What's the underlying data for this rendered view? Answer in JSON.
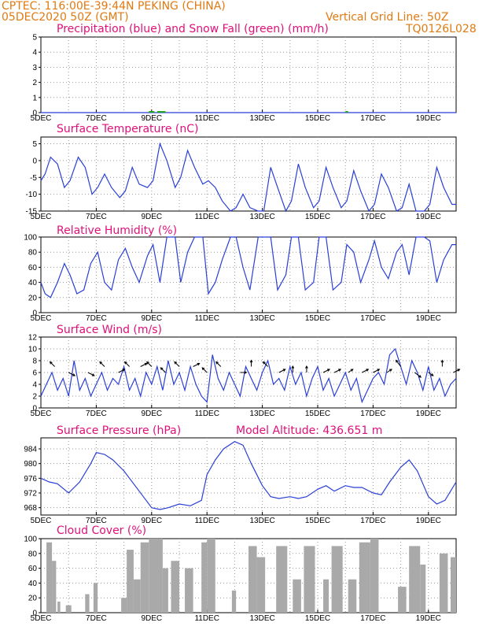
{
  "header": {
    "line1": "CPTEC:   116:00E-39:44N   PEKING (CHINA)",
    "line2": "05DEC2020 50Z (GMT)",
    "grid_note": "Vertical Grid Line: 50Z",
    "code": "TQ0126L028"
  },
  "colors": {
    "series_line": "#2a3fd6",
    "wind_arrow": "#000000",
    "cloud_fill": "#a9a9a9",
    "title_color": "#e0107a",
    "header_color": "#e07a12"
  },
  "chart_data": [
    {
      "id": "precip",
      "type": "line",
      "title": "Precipitation (blue) and Snow Fall (green) (mm/h)",
      "x_tick_labels": [
        "5DEC",
        "7DEC",
        "9DEC",
        "11DEC",
        "13DEC",
        "15DEC",
        "17DEC",
        "19DEC"
      ],
      "ylim": [
        0,
        5
      ],
      "y_ticks": [
        0,
        1,
        2,
        3,
        4,
        5
      ],
      "grid": true,
      "series": [
        {
          "name": "Precipitation",
          "color": "#2a3fd6",
          "x": [
            5,
            20
          ],
          "y": [
            0,
            0
          ]
        },
        {
          "name": "Snow Fall",
          "color": "#1fa81f",
          "x": [
            8.9,
            9.1,
            9.2,
            9.5,
            16.0,
            16.1
          ],
          "y": [
            0.05,
            0.05,
            0.05,
            0.05,
            0.05,
            0.05
          ]
        }
      ]
    },
    {
      "id": "temp",
      "type": "line",
      "title": "Surface Temperature (nC)",
      "x_tick_labels": [
        "5DEC",
        "7DEC",
        "9DEC",
        "11DEC",
        "13DEC",
        "15DEC",
        "17DEC",
        "19DEC"
      ],
      "ylim": [
        -15,
        7
      ],
      "y_ticks": [
        -15,
        -10,
        -5,
        0,
        5
      ],
      "grid": true,
      "series": [
        {
          "x": [
            5.0,
            5.15,
            5.35,
            5.6,
            5.85,
            6.05,
            6.35,
            6.6,
            6.85,
            7.05,
            7.3,
            7.55,
            7.85,
            8.05,
            8.3,
            8.55,
            8.85,
            9.05,
            9.3,
            9.55,
            9.85,
            10.05,
            10.3,
            10.55,
            10.85,
            11.05,
            11.3,
            11.55,
            11.85,
            12.05,
            12.3,
            12.55,
            12.85,
            13.05,
            13.3,
            13.55,
            13.85,
            14.05,
            14.3,
            14.55,
            14.85,
            15.05,
            15.3,
            15.55,
            15.85,
            16.05,
            16.3,
            16.55,
            16.85,
            17.05,
            17.3,
            17.55,
            17.85,
            18.05,
            18.3,
            18.55,
            18.85,
            19.05,
            19.3,
            19.55,
            19.85,
            20.0
          ],
          "y": [
            -6,
            -4,
            1,
            -1,
            -8,
            -6,
            1,
            -2,
            -10,
            -8,
            -4,
            -8,
            -11,
            -9,
            -2,
            -7,
            -8,
            -6,
            5,
            0,
            -8,
            -5,
            3,
            -2,
            -7,
            -6,
            -8,
            -12,
            -15,
            -14,
            -10,
            -14,
            -17,
            -16,
            -2,
            -8,
            -15,
            -12,
            -1,
            -8,
            -14,
            -12,
            -2,
            -8,
            -14,
            -12,
            -3,
            -9,
            -15,
            -13,
            -4,
            -8,
            -15,
            -14,
            -7,
            -16,
            -15,
            -13,
            -2,
            -8,
            -13,
            -13
          ]
        }
      ]
    },
    {
      "id": "rh",
      "type": "line",
      "title": "Relative Humidity (%)",
      "x_tick_labels": [
        "5DEC",
        "7DEC",
        "9DEC",
        "11DEC",
        "13DEC",
        "15DEC",
        "17DEC",
        "19DEC"
      ],
      "ylim": [
        0,
        100
      ],
      "y_ticks": [
        0,
        20,
        40,
        60,
        80,
        100
      ],
      "grid": true,
      "series": [
        {
          "x": [
            5.0,
            5.15,
            5.35,
            5.6,
            5.85,
            6.05,
            6.3,
            6.55,
            6.8,
            7.05,
            7.3,
            7.55,
            7.8,
            8.05,
            8.3,
            8.55,
            8.85,
            9.05,
            9.3,
            9.55,
            9.85,
            10.05,
            10.3,
            10.55,
            10.85,
            11.05,
            11.3,
            11.55,
            11.85,
            12.05,
            12.3,
            12.55,
            12.85,
            13.05,
            13.3,
            13.55,
            13.85,
            14.05,
            14.3,
            14.55,
            14.85,
            15.05,
            15.3,
            15.55,
            15.85,
            16.05,
            16.3,
            16.55,
            16.85,
            17.05,
            17.3,
            17.55,
            17.85,
            18.05,
            18.3,
            18.55,
            18.85,
            19.05,
            19.3,
            19.55,
            19.85,
            20.0
          ],
          "y": [
            40,
            25,
            20,
            40,
            65,
            50,
            25,
            30,
            65,
            80,
            40,
            30,
            70,
            85,
            60,
            40,
            75,
            90,
            40,
            100,
            100,
            40,
            80,
            100,
            100,
            25,
            40,
            70,
            100,
            100,
            60,
            30,
            100,
            100,
            100,
            30,
            50,
            100,
            100,
            30,
            40,
            100,
            100,
            30,
            40,
            90,
            80,
            40,
            70,
            95,
            60,
            45,
            80,
            90,
            50,
            100,
            100,
            95,
            40,
            70,
            90,
            90
          ]
        }
      ]
    },
    {
      "id": "wind",
      "type": "line",
      "title": "Surface Wind (m/s)",
      "x_tick_labels": [
        "5DEC",
        "7DEC",
        "9DEC",
        "11DEC",
        "13DEC",
        "15DEC",
        "17DEC",
        "19DEC"
      ],
      "ylim": [
        0,
        12
      ],
      "y_ticks": [
        0,
        2,
        4,
        6,
        8,
        10,
        12
      ],
      "grid": true,
      "series": [
        {
          "x": [
            5.0,
            5.2,
            5.4,
            5.6,
            5.8,
            6.0,
            6.2,
            6.4,
            6.6,
            6.8,
            7.0,
            7.2,
            7.4,
            7.6,
            7.8,
            8.0,
            8.2,
            8.4,
            8.6,
            8.8,
            9.0,
            9.2,
            9.4,
            9.6,
            9.8,
            10.0,
            10.2,
            10.4,
            10.6,
            10.8,
            11.0,
            11.2,
            11.4,
            11.6,
            11.8,
            12.0,
            12.2,
            12.4,
            12.6,
            12.8,
            13.0,
            13.2,
            13.4,
            13.6,
            13.8,
            14.0,
            14.2,
            14.4,
            14.6,
            14.8,
            15.0,
            15.2,
            15.4,
            15.6,
            15.8,
            16.0,
            16.2,
            16.4,
            16.6,
            16.8,
            17.0,
            17.2,
            17.4,
            17.6,
            17.8,
            18.0,
            18.2,
            18.4,
            18.6,
            18.8,
            19.0,
            19.2,
            19.4,
            19.6,
            19.8,
            20.0
          ],
          "y": [
            2,
            4,
            6,
            3,
            5,
            2,
            8,
            3,
            5,
            2,
            4,
            6,
            3,
            5,
            4,
            7,
            3,
            5,
            2,
            6,
            4,
            7,
            3,
            8,
            4,
            6,
            3,
            7,
            4,
            2,
            1,
            9,
            5,
            3,
            6,
            4,
            2,
            7,
            5,
            3,
            6,
            8,
            4,
            5,
            3,
            7,
            4,
            6,
            2,
            5,
            7,
            3,
            5,
            2,
            4,
            6,
            3,
            5,
            1,
            3,
            5,
            6,
            4,
            9,
            10,
            7,
            4,
            8,
            6,
            3,
            7,
            3,
            5,
            2,
            4,
            5
          ]
        }
      ],
      "arrows": {
        "x": [
          5.5,
          6.0,
          6.7,
          7.3,
          7.8,
          8.2,
          8.6,
          9.0,
          9.5,
          10.0,
          10.5,
          11.0,
          11.5,
          12.2,
          12.6,
          13.2,
          13.6,
          14.1,
          14.6,
          15.2,
          15.6,
          16.1,
          16.6,
          17.0,
          17.5,
          18.0,
          18.5,
          19.0,
          19.5,
          19.9
        ],
        "speed": [
          7,
          6,
          6,
          7,
          6,
          7,
          7,
          7,
          6,
          7,
          7,
          6,
          7,
          6,
          7,
          7,
          6,
          6,
          6,
          6,
          6,
          6,
          6,
          6,
          6,
          7,
          6,
          6,
          7,
          6
        ],
        "dx": [
          -6,
          8,
          8,
          -6,
          8,
          -6,
          8,
          -6,
          -6,
          -6,
          8,
          -6,
          -6,
          8,
          0,
          -6,
          8,
          0,
          0,
          8,
          8,
          6,
          8,
          8,
          6,
          -6,
          8,
          6,
          0,
          8
        ],
        "dy": [
          -6,
          4,
          4,
          -6,
          -4,
          -6,
          -4,
          -6,
          -6,
          -6,
          -4,
          -6,
          -6,
          0,
          -8,
          -6,
          -4,
          -8,
          -8,
          -4,
          -4,
          -4,
          -4,
          -4,
          -4,
          -8,
          6,
          4,
          -8,
          -4
        ]
      }
    },
    {
      "id": "pres",
      "type": "line",
      "title": "Surface Pressure (hPa)",
      "annotation": "Model Altitude: 436.651  m",
      "x_tick_labels": [
        "5DEC",
        "7DEC",
        "9DEC",
        "11DEC",
        "13DEC",
        "15DEC",
        "17DEC",
        "19DEC"
      ],
      "ylim": [
        966,
        987
      ],
      "y_ticks": [
        968,
        972,
        976,
        980,
        984
      ],
      "grid": true,
      "series": [
        {
          "x": [
            5.0,
            5.3,
            5.6,
            6.0,
            6.4,
            6.8,
            7.0,
            7.3,
            7.6,
            8.0,
            8.4,
            8.8,
            9.0,
            9.3,
            9.6,
            10.0,
            10.4,
            10.8,
            11.0,
            11.3,
            11.6,
            12.0,
            12.3,
            12.6,
            13.0,
            13.3,
            13.6,
            14.0,
            14.3,
            14.6,
            15.0,
            15.3,
            15.6,
            16.0,
            16.3,
            16.6,
            17.0,
            17.3,
            17.6,
            18.0,
            18.3,
            18.6,
            19.0,
            19.3,
            19.6,
            20.0
          ],
          "y": [
            976,
            975,
            974.5,
            972,
            975,
            980,
            983,
            982.5,
            981,
            978,
            974,
            970,
            968,
            967.5,
            968,
            969,
            968.5,
            970,
            977,
            981,
            984,
            986,
            985,
            980,
            974,
            971,
            970.5,
            971,
            970.5,
            971,
            973,
            974,
            972.5,
            974,
            973.5,
            973.5,
            972,
            971.5,
            975,
            979,
            981,
            978,
            971,
            969,
            970,
            975
          ]
        }
      ]
    },
    {
      "id": "cloud",
      "type": "bar",
      "title": "Cloud Cover (%)",
      "x_tick_labels": [
        "5DEC",
        "7DEC",
        "9DEC",
        "11DEC",
        "13DEC",
        "15DEC",
        "17DEC",
        "19DEC"
      ],
      "ylim": [
        0,
        100
      ],
      "y_ticks": [
        0,
        20,
        40,
        60,
        80,
        100
      ],
      "grid": true,
      "bars": [
        {
          "x0": 5.2,
          "x1": 5.4,
          "value": 95
        },
        {
          "x0": 5.4,
          "x1": 5.55,
          "value": 70
        },
        {
          "x0": 5.6,
          "x1": 5.7,
          "value": 15
        },
        {
          "x0": 5.9,
          "x1": 6.1,
          "value": 10
        },
        {
          "x0": 6.6,
          "x1": 6.75,
          "value": 25
        },
        {
          "x0": 6.9,
          "x1": 7.05,
          "value": 40
        },
        {
          "x0": 7.9,
          "x1": 8.1,
          "value": 20
        },
        {
          "x0": 8.1,
          "x1": 8.35,
          "value": 85
        },
        {
          "x0": 8.35,
          "x1": 8.6,
          "value": 45
        },
        {
          "x0": 8.6,
          "x1": 8.9,
          "value": 95
        },
        {
          "x0": 8.9,
          "x1": 9.4,
          "value": 100
        },
        {
          "x0": 9.4,
          "x1": 9.6,
          "value": 60
        },
        {
          "x0": 9.7,
          "x1": 10.0,
          "value": 70
        },
        {
          "x0": 10.2,
          "x1": 10.5,
          "value": 60
        },
        {
          "x0": 10.8,
          "x1": 11.0,
          "value": 95
        },
        {
          "x0": 11.0,
          "x1": 11.3,
          "value": 100
        },
        {
          "x0": 11.9,
          "x1": 12.05,
          "value": 30
        },
        {
          "x0": 12.5,
          "x1": 12.8,
          "value": 90
        },
        {
          "x0": 12.8,
          "x1": 13.1,
          "value": 75
        },
        {
          "x0": 13.5,
          "x1": 13.9,
          "value": 90
        },
        {
          "x0": 14.1,
          "x1": 14.4,
          "value": 45
        },
        {
          "x0": 14.5,
          "x1": 14.9,
          "value": 90
        },
        {
          "x0": 15.2,
          "x1": 15.4,
          "value": 45
        },
        {
          "x0": 15.5,
          "x1": 15.9,
          "value": 90
        },
        {
          "x0": 16.1,
          "x1": 16.4,
          "value": 45
        },
        {
          "x0": 16.5,
          "x1": 16.9,
          "value": 95
        },
        {
          "x0": 16.9,
          "x1": 17.2,
          "value": 100
        },
        {
          "x0": 17.9,
          "x1": 18.2,
          "value": 35
        },
        {
          "x0": 18.3,
          "x1": 18.7,
          "value": 90
        },
        {
          "x0": 18.7,
          "x1": 18.9,
          "value": 65
        },
        {
          "x0": 19.4,
          "x1": 19.7,
          "value": 80
        },
        {
          "x0": 19.8,
          "x1": 20.0,
          "value": 75
        }
      ]
    }
  ]
}
